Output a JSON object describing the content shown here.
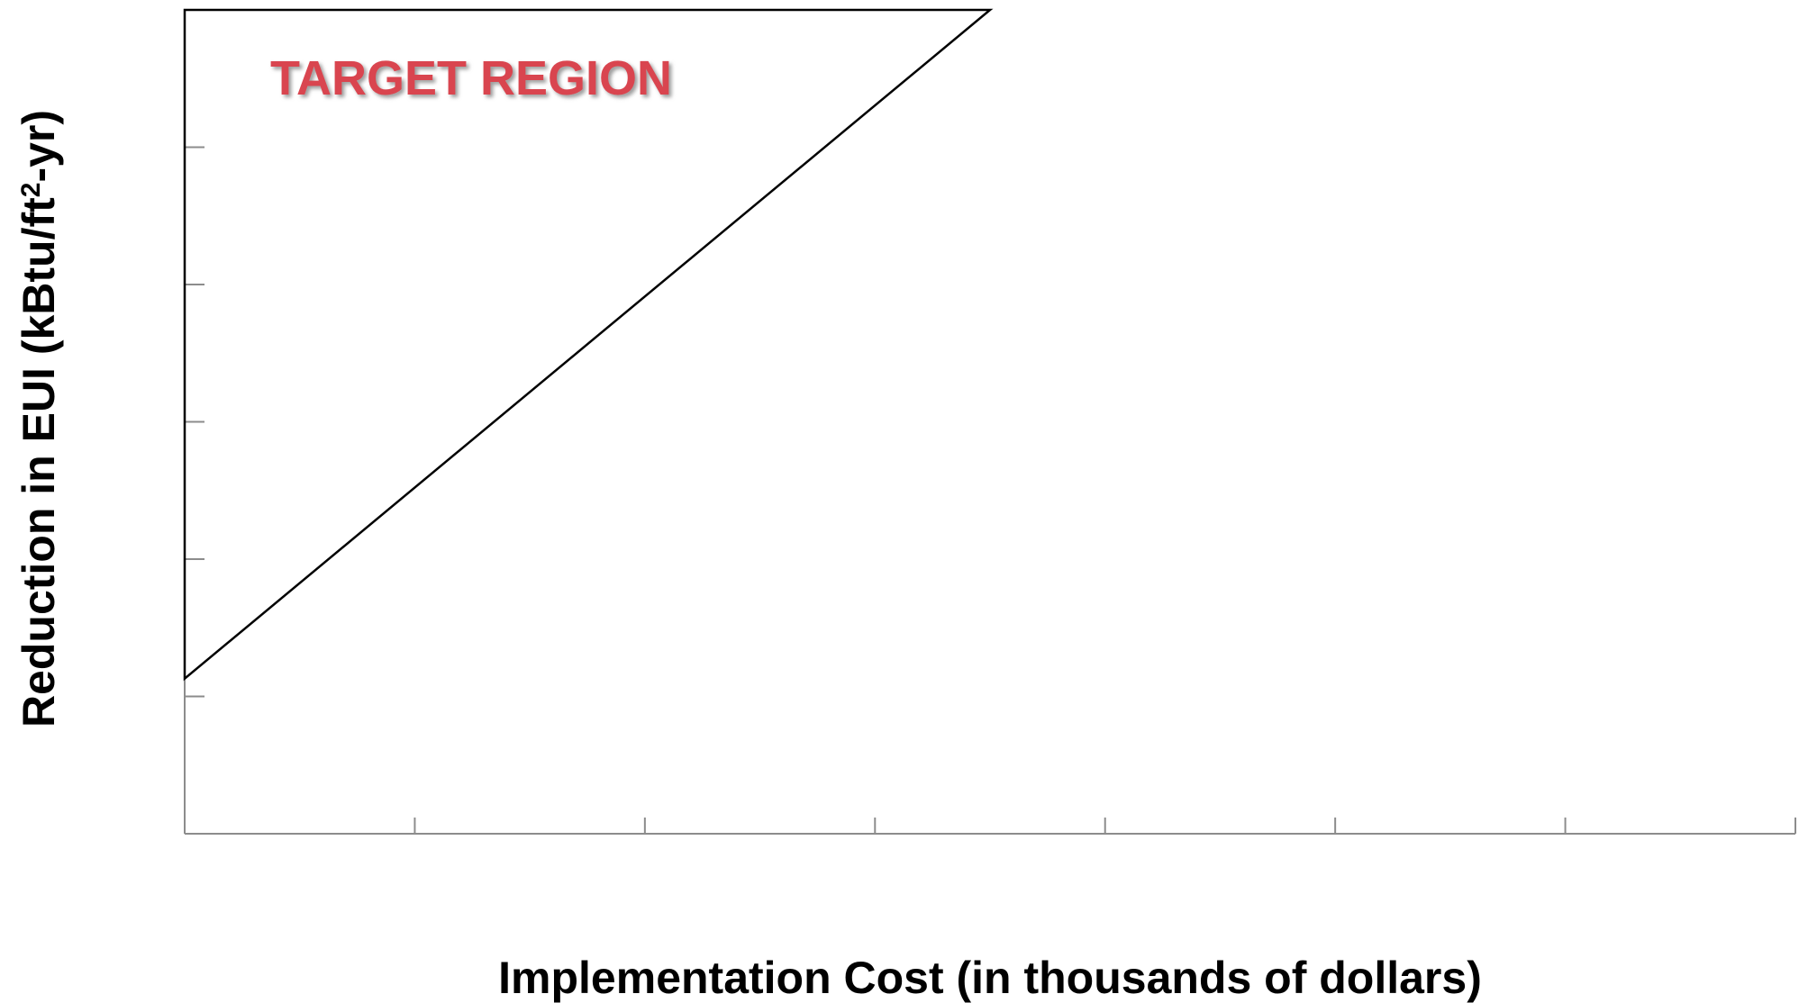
{
  "chart_data": {
    "type": "area",
    "title": "",
    "xlabel": "Implementation Cost (in thousands of dollars)",
    "ylabel_parts": {
      "prefix": "Reduction in EUI (kBtu/ft",
      "superscript": "2",
      "suffix": "-yr)"
    },
    "xlim": [
      0,
      7
    ],
    "ylim": [
      0,
      6
    ],
    "x_tick_count": 8,
    "y_tick_count": 7,
    "grid": false,
    "legend": "none",
    "region": {
      "label": "TARGET REGION",
      "color": "#d9454f",
      "shadow_color": "#9b9b9b",
      "vertices": [
        [
          0,
          1.13
        ],
        [
          0,
          6
        ],
        [
          3.5,
          6
        ]
      ]
    },
    "boundary_line": {
      "x": [
        0,
        3.5
      ],
      "y": [
        1.13,
        6
      ],
      "color": "#000000"
    }
  }
}
